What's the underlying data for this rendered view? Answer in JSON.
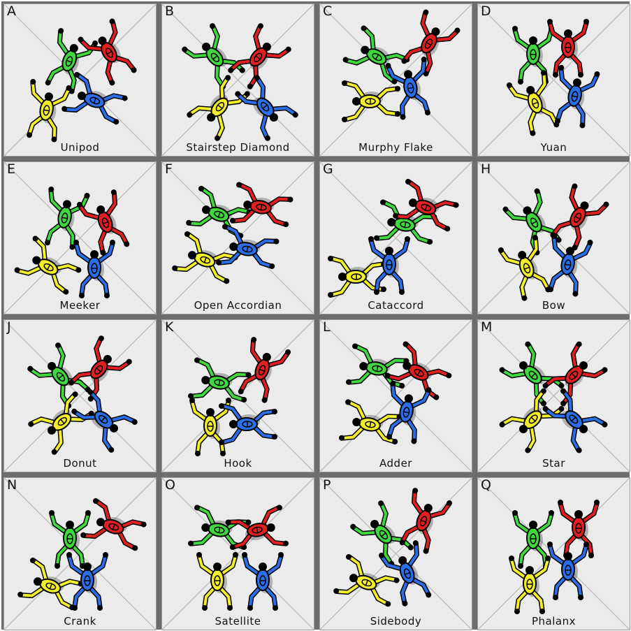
{
  "colors": {
    "green": "#3fd83f",
    "red": "#e02020",
    "yellow": "#f2ee2a",
    "blue": "#2a6ee8",
    "outline": "#000000",
    "cell_bg": "#ebebeb"
  },
  "formations": [
    {
      "letter": "A",
      "name": "Unipod"
    },
    {
      "letter": "B",
      "name": "Stairstep Diamond"
    },
    {
      "letter": "C",
      "name": "Murphy Flake"
    },
    {
      "letter": "D",
      "name": "Yuan"
    },
    {
      "letter": "E",
      "name": "Meeker"
    },
    {
      "letter": "F",
      "name": "Open Accordian"
    },
    {
      "letter": "G",
      "name": "Cataccord"
    },
    {
      "letter": "H",
      "name": "Bow"
    },
    {
      "letter": "J",
      "name": "Donut"
    },
    {
      "letter": "K",
      "name": "Hook"
    },
    {
      "letter": "L",
      "name": "Adder"
    },
    {
      "letter": "M",
      "name": "Star"
    },
    {
      "letter": "N",
      "name": "Crank"
    },
    {
      "letter": "O",
      "name": "Satellite"
    },
    {
      "letter": "P",
      "name": "Sidebody"
    },
    {
      "letter": "Q",
      "name": "Phalanx"
    }
  ]
}
